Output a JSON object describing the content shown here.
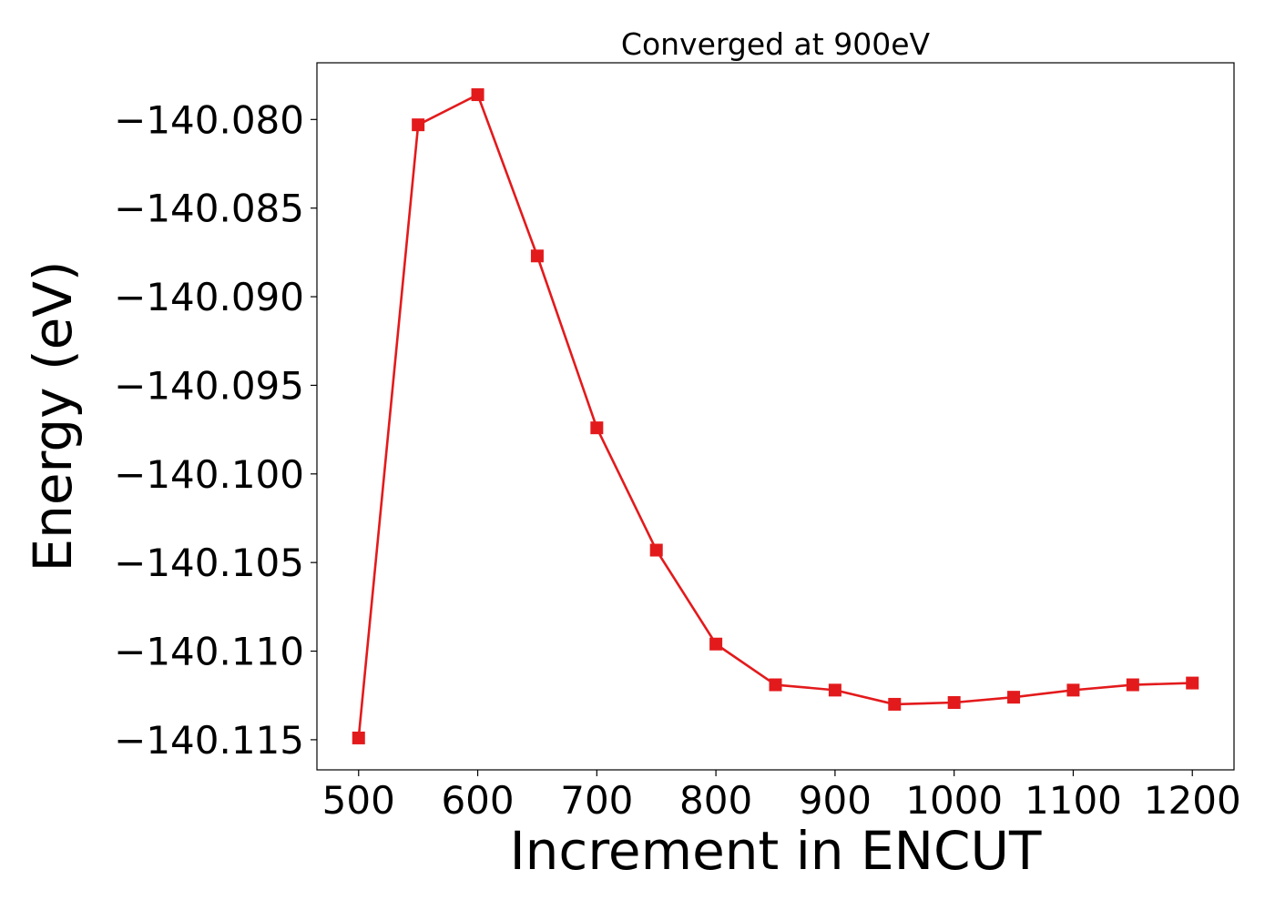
{
  "chart_data": {
    "type": "line",
    "title": "Converged at 900eV",
    "xlabel": "Increment in ENCUT",
    "ylabel": "Energy (eV)",
    "xlim": [
      465,
      1235
    ],
    "ylim": [
      -140.1167,
      -140.0768
    ],
    "x_ticks": [
      500,
      600,
      700,
      800,
      900,
      1000,
      1100,
      1200
    ],
    "x_tick_labels": [
      "500",
      "600",
      "700",
      "800",
      "900",
      "1000",
      "1100",
      "1200"
    ],
    "y_ticks": [
      -140.08,
      -140.085,
      -140.09,
      -140.095,
      -140.1,
      -140.105,
      -140.11,
      -140.115
    ],
    "y_tick_labels": [
      "−140.080",
      "−140.085",
      "−140.090",
      "−140.095",
      "−140.100",
      "−140.105",
      "−140.110",
      "−140.115"
    ],
    "grid": false,
    "legend": false,
    "series": [
      {
        "color": "#e31a1c",
        "marker": "square",
        "x": [
          500,
          550,
          600,
          650,
          700,
          750,
          800,
          850,
          900,
          950,
          1000,
          1050,
          1100,
          1150,
          1200
        ],
        "y": [
          -140.1149,
          -140.0803,
          -140.0786,
          -140.0877,
          -140.0974,
          -140.1043,
          -140.1096,
          -140.1119,
          -140.1122,
          -140.113,
          -140.1129,
          -140.1126,
          -140.1122,
          -140.1119,
          -140.1118
        ]
      }
    ]
  }
}
